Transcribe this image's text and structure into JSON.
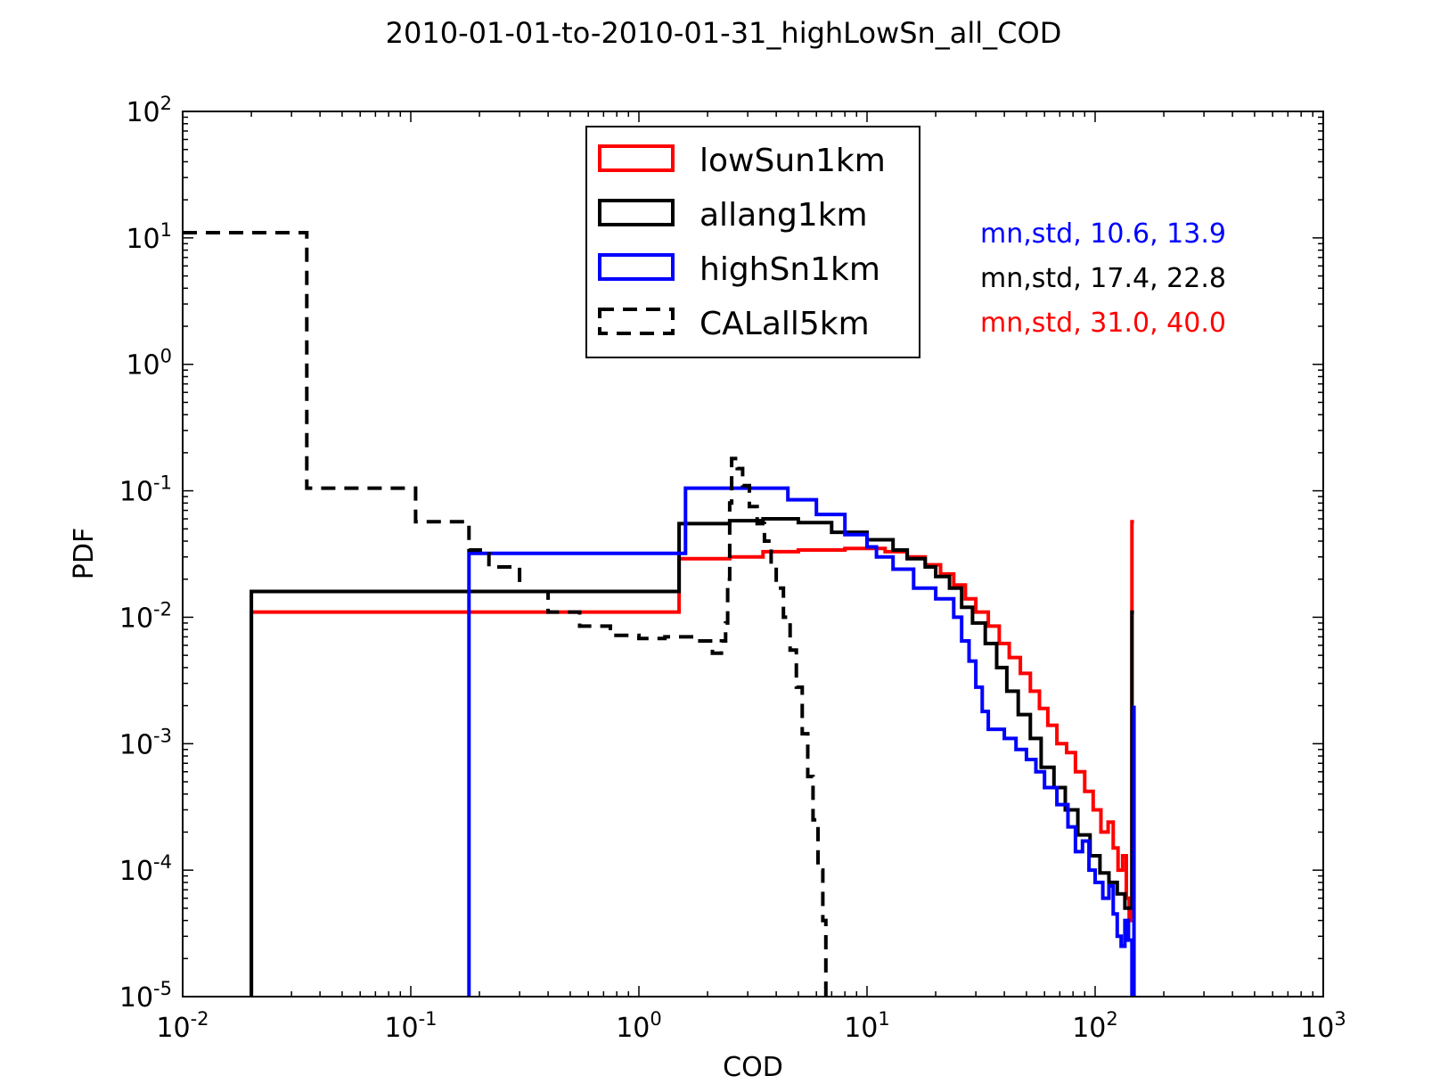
{
  "chart_data": {
    "type": "line",
    "title": "2010-01-01-to-2010-01-31_highLowSn_all_COD",
    "xlabel": "COD",
    "ylabel": "PDF",
    "xscale": "log",
    "yscale": "log",
    "xlim": [
      0.01,
      1000
    ],
    "ylim": [
      1e-05,
      100
    ],
    "x_ticks": [
      {
        "value": 0.01,
        "base": "10",
        "exp": "-2"
      },
      {
        "value": 0.1,
        "base": "10",
        "exp": "-1"
      },
      {
        "value": 1,
        "base": "10",
        "exp": "0"
      },
      {
        "value": 10,
        "base": "10",
        "exp": "1"
      },
      {
        "value": 100,
        "base": "10",
        "exp": "2"
      },
      {
        "value": 1000,
        "base": "10",
        "exp": "3"
      }
    ],
    "y_ticks": [
      {
        "value": 1e-05,
        "base": "10",
        "exp": "-5"
      },
      {
        "value": 0.0001,
        "base": "10",
        "exp": "-4"
      },
      {
        "value": 0.001,
        "base": "10",
        "exp": "-3"
      },
      {
        "value": 0.01,
        "base": "10",
        "exp": "-2"
      },
      {
        "value": 0.1,
        "base": "10",
        "exp": "-1"
      },
      {
        "value": 1,
        "base": "10",
        "exp": "0"
      },
      {
        "value": 10,
        "base": "10",
        "exp": "1"
      },
      {
        "value": 100,
        "base": "10",
        "exp": "2"
      }
    ],
    "legend_position": "upper-center",
    "series": [
      {
        "name": "lowSun1km",
        "color": "#ff0000",
        "style": "solid",
        "points": [
          [
            0.02,
            1e-05
          ],
          [
            0.02,
            0.011
          ],
          [
            1.5,
            0.011
          ],
          [
            1.5,
            0.029
          ],
          [
            2.5,
            0.029
          ],
          [
            2.5,
            0.03
          ],
          [
            3.5,
            0.03
          ],
          [
            3.5,
            0.033
          ],
          [
            5,
            0.033
          ],
          [
            5,
            0.034
          ],
          [
            8,
            0.034
          ],
          [
            8,
            0.035
          ],
          [
            12,
            0.035
          ],
          [
            12,
            0.033
          ],
          [
            15,
            0.033
          ],
          [
            15,
            0.03
          ],
          [
            18,
            0.03
          ],
          [
            18,
            0.026
          ],
          [
            21,
            0.026
          ],
          [
            21,
            0.022
          ],
          [
            24,
            0.022
          ],
          [
            24,
            0.018
          ],
          [
            27,
            0.018
          ],
          [
            27,
            0.014
          ],
          [
            30,
            0.014
          ],
          [
            30,
            0.011
          ],
          [
            34,
            0.011
          ],
          [
            34,
            0.0085
          ],
          [
            38,
            0.0085
          ],
          [
            38,
            0.0062
          ],
          [
            42,
            0.0062
          ],
          [
            42,
            0.0048
          ],
          [
            47,
            0.0048
          ],
          [
            47,
            0.0036
          ],
          [
            52,
            0.0036
          ],
          [
            52,
            0.0026
          ],
          [
            57,
            0.0026
          ],
          [
            57,
            0.0019
          ],
          [
            62,
            0.0019
          ],
          [
            62,
            0.0014
          ],
          [
            68,
            0.0014
          ],
          [
            68,
            0.001
          ],
          [
            75,
            0.001
          ],
          [
            75,
            0.00085
          ],
          [
            82,
            0.00085
          ],
          [
            82,
            0.0006
          ],
          [
            90,
            0.0006
          ],
          [
            90,
            0.00042
          ],
          [
            98,
            0.00042
          ],
          [
            98,
            0.0003
          ],
          [
            106,
            0.0003
          ],
          [
            106,
            0.0002
          ],
          [
            114,
            0.0002
          ],
          [
            114,
            0.00024
          ],
          [
            120,
            0.00024
          ],
          [
            120,
            0.00015
          ],
          [
            126,
            0.00015
          ],
          [
            126,
            0.0001
          ],
          [
            132,
            0.0001
          ],
          [
            132,
            0.00013
          ],
          [
            137,
            0.00013
          ],
          [
            137,
            6e-05
          ],
          [
            141,
            6e-05
          ],
          [
            141,
            4e-05
          ],
          [
            145,
            4e-05
          ],
          [
            145,
            0.057
          ],
          [
            148,
            0.057
          ]
        ]
      },
      {
        "name": "allang1km",
        "color": "#000000",
        "style": "solid",
        "points": [
          [
            0.02,
            1e-05
          ],
          [
            0.02,
            0.016
          ],
          [
            1.5,
            0.016
          ],
          [
            1.5,
            0.055
          ],
          [
            2.5,
            0.055
          ],
          [
            2.5,
            0.058
          ],
          [
            3.5,
            0.058
          ],
          [
            3.5,
            0.06
          ],
          [
            5,
            0.06
          ],
          [
            5,
            0.056
          ],
          [
            7,
            0.056
          ],
          [
            7,
            0.047
          ],
          [
            10,
            0.047
          ],
          [
            10,
            0.041
          ],
          [
            13,
            0.041
          ],
          [
            13,
            0.034
          ],
          [
            15,
            0.034
          ],
          [
            15,
            0.029
          ],
          [
            18,
            0.029
          ],
          [
            18,
            0.025
          ],
          [
            20,
            0.025
          ],
          [
            20,
            0.021
          ],
          [
            23,
            0.021
          ],
          [
            23,
            0.017
          ],
          [
            26,
            0.017
          ],
          [
            26,
            0.012
          ],
          [
            29,
            0.012
          ],
          [
            29,
            0.009
          ],
          [
            33,
            0.009
          ],
          [
            33,
            0.0062
          ],
          [
            37,
            0.0062
          ],
          [
            37,
            0.004
          ],
          [
            41,
            0.004
          ],
          [
            41,
            0.0026
          ],
          [
            46,
            0.0026
          ],
          [
            46,
            0.0017
          ],
          [
            52,
            0.0017
          ],
          [
            52,
            0.0011
          ],
          [
            58,
            0.0011
          ],
          [
            58,
            0.00065
          ],
          [
            66,
            0.00065
          ],
          [
            66,
            0.00045
          ],
          [
            74,
            0.00045
          ],
          [
            74,
            0.0003
          ],
          [
            84,
            0.0003
          ],
          [
            84,
            0.00019
          ],
          [
            95,
            0.00019
          ],
          [
            95,
            0.00013
          ],
          [
            105,
            0.00013
          ],
          [
            105,
            9.5e-05
          ],
          [
            115,
            9.5e-05
          ],
          [
            115,
            8e-05
          ],
          [
            125,
            8e-05
          ],
          [
            125,
            6.5e-05
          ],
          [
            135,
            6.5e-05
          ],
          [
            135,
            5e-05
          ],
          [
            145,
            5e-05
          ],
          [
            145,
            0.011
          ],
          [
            148,
            0.011
          ]
        ]
      },
      {
        "name": "highSn1km",
        "color": "#0000ff",
        "style": "solid",
        "points": [
          [
            0.18,
            1e-05
          ],
          [
            0.18,
            0.032
          ],
          [
            1.6,
            0.032
          ],
          [
            1.6,
            0.105
          ],
          [
            4.5,
            0.105
          ],
          [
            4.5,
            0.085
          ],
          [
            6,
            0.085
          ],
          [
            6,
            0.065
          ],
          [
            8,
            0.065
          ],
          [
            8,
            0.045
          ],
          [
            10,
            0.045
          ],
          [
            10,
            0.036
          ],
          [
            11,
            0.036
          ],
          [
            11,
            0.03
          ],
          [
            13,
            0.03
          ],
          [
            13,
            0.024
          ],
          [
            16,
            0.024
          ],
          [
            16,
            0.017
          ],
          [
            20,
            0.017
          ],
          [
            20,
            0.014
          ],
          [
            24,
            0.014
          ],
          [
            24,
            0.01
          ],
          [
            26,
            0.01
          ],
          [
            26,
            0.0065
          ],
          [
            28,
            0.0065
          ],
          [
            28,
            0.0045
          ],
          [
            30,
            0.0045
          ],
          [
            30,
            0.0028
          ],
          [
            32,
            0.0028
          ],
          [
            32,
            0.0018
          ],
          [
            34,
            0.0018
          ],
          [
            34,
            0.0013
          ],
          [
            40,
            0.0013
          ],
          [
            40,
            0.0011
          ],
          [
            45,
            0.0011
          ],
          [
            45,
            0.0009
          ],
          [
            50,
            0.0009
          ],
          [
            50,
            0.00075
          ],
          [
            55,
            0.00075
          ],
          [
            55,
            0.0006
          ],
          [
            60,
            0.0006
          ],
          [
            60,
            0.00045
          ],
          [
            68,
            0.00045
          ],
          [
            68,
            0.00033
          ],
          [
            76,
            0.00033
          ],
          [
            76,
            0.00022
          ],
          [
            82,
            0.00022
          ],
          [
            82,
            0.00014
          ],
          [
            88,
            0.00014
          ],
          [
            88,
            0.00017
          ],
          [
            94,
            0.00017
          ],
          [
            94,
            0.0001
          ],
          [
            100,
            0.0001
          ],
          [
            100,
            8e-05
          ],
          [
            108,
            8e-05
          ],
          [
            108,
            6e-05
          ],
          [
            115,
            6e-05
          ],
          [
            115,
            7.5e-05
          ],
          [
            120,
            7.5e-05
          ],
          [
            120,
            4.5e-05
          ],
          [
            125,
            4.5e-05
          ],
          [
            125,
            3e-05
          ],
          [
            130,
            3e-05
          ],
          [
            130,
            2.5e-05
          ],
          [
            135,
            2.5e-05
          ],
          [
            135,
            4e-05
          ],
          [
            140,
            4e-05
          ],
          [
            140,
            2.8e-05
          ],
          [
            145,
            2.8e-05
          ],
          [
            145,
            1e-05
          ],
          [
            148,
            1e-05
          ],
          [
            148,
            0.002
          ]
        ]
      },
      {
        "name": "CALall5km",
        "color": "#000000",
        "style": "dashed",
        "points": [
          [
            0.01,
            11
          ],
          [
            0.035,
            11
          ],
          [
            0.035,
            0.105
          ],
          [
            0.105,
            0.105
          ],
          [
            0.105,
            0.057
          ],
          [
            0.18,
            0.057
          ],
          [
            0.18,
            0.034
          ],
          [
            0.22,
            0.034
          ],
          [
            0.22,
            0.025
          ],
          [
            0.3,
            0.025
          ],
          [
            0.3,
            0.016
          ],
          [
            0.4,
            0.016
          ],
          [
            0.4,
            0.011
          ],
          [
            0.55,
            0.011
          ],
          [
            0.55,
            0.0085
          ],
          [
            0.75,
            0.0085
          ],
          [
            0.75,
            0.0072
          ],
          [
            1.0,
            0.0072
          ],
          [
            1.0,
            0.0068
          ],
          [
            1.3,
            0.0068
          ],
          [
            1.3,
            0.007
          ],
          [
            1.7,
            0.007
          ],
          [
            1.7,
            0.0065
          ],
          [
            2.1,
            0.0065
          ],
          [
            2.1,
            0.0052
          ],
          [
            2.3,
            0.0052
          ],
          [
            2.3,
            0.0065
          ],
          [
            2.4,
            0.0065
          ],
          [
            2.4,
            0.009
          ],
          [
            2.45,
            0.009
          ],
          [
            2.45,
            0.02
          ],
          [
            2.5,
            0.02
          ],
          [
            2.5,
            0.08
          ],
          [
            2.55,
            0.08
          ],
          [
            2.55,
            0.18
          ],
          [
            2.7,
            0.18
          ],
          [
            2.7,
            0.15
          ],
          [
            2.85,
            0.15
          ],
          [
            2.85,
            0.11
          ],
          [
            3.05,
            0.11
          ],
          [
            3.05,
            0.075
          ],
          [
            3.3,
            0.075
          ],
          [
            3.3,
            0.055
          ],
          [
            3.55,
            0.055
          ],
          [
            3.55,
            0.04
          ],
          [
            3.8,
            0.04
          ],
          [
            3.8,
            0.025
          ],
          [
            4.0,
            0.025
          ],
          [
            4.0,
            0.017
          ],
          [
            4.3,
            0.017
          ],
          [
            4.3,
            0.01
          ],
          [
            4.6,
            0.01
          ],
          [
            4.6,
            0.0055
          ],
          [
            4.9,
            0.0055
          ],
          [
            4.9,
            0.0028
          ],
          [
            5.2,
            0.0028
          ],
          [
            5.2,
            0.0012
          ],
          [
            5.5,
            0.0012
          ],
          [
            5.5,
            0.00055
          ],
          [
            5.8,
            0.00055
          ],
          [
            5.8,
            0.00025
          ],
          [
            6.1,
            0.00025
          ],
          [
            6.1,
            0.0001
          ],
          [
            6.4,
            0.0001
          ],
          [
            6.4,
            4e-05
          ],
          [
            6.6,
            4e-05
          ],
          [
            6.6,
            1e-05
          ]
        ]
      }
    ],
    "annotations": [
      {
        "text": "mn,std, 10.6, 13.9",
        "color": "#0000ff"
      },
      {
        "text": "mn,std, 17.4, 22.8",
        "color": "#000000"
      },
      {
        "text": "mn,std, 31.0, 40.0",
        "color": "#ff0000"
      }
    ]
  }
}
